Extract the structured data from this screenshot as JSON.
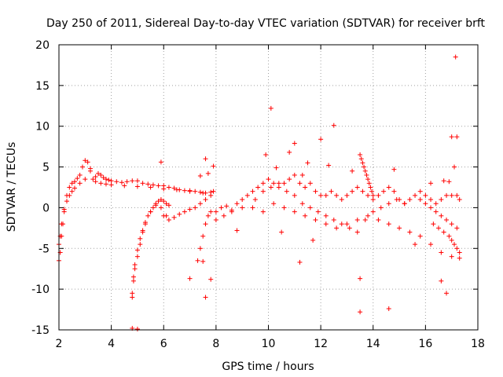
{
  "chart_data": {
    "type": "scatter",
    "title": "Day 250 of 2011, Sidereal Day-to-day VTEC variation (SDTVAR) for receiver brft",
    "xlabel": "GPS time / hours",
    "ylabel": "SDTVAR / TECUs",
    "xlim": [
      2,
      18
    ],
    "ylim": [
      -15,
      20
    ],
    "xticks": [
      2,
      4,
      6,
      8,
      10,
      12,
      14,
      16,
      18
    ],
    "yticks": [
      -15,
      -10,
      -5,
      0,
      5,
      10,
      15,
      20
    ],
    "xtick_labels": [
      "2",
      "4",
      "6",
      "8",
      "10",
      "12",
      "14",
      "16",
      "18"
    ],
    "ytick_labels": [
      "-15",
      "-10",
      "-5",
      "0",
      "5",
      "10",
      "15",
      "20"
    ],
    "grid": true,
    "marker": "+",
    "color": "#ff0000",
    "series": [
      {
        "name": "SDTVAR",
        "x": [
          2.0,
          2.05,
          2.1,
          2.15,
          2.2,
          2.3,
          2.4,
          2.5,
          2.6,
          2.7,
          2.8,
          2.9,
          3.0,
          3.1,
          3.2,
          3.3,
          3.4,
          3.5,
          3.6,
          3.7,
          3.8,
          3.9,
          4.0,
          4.2,
          4.4,
          4.6,
          4.8,
          5.0,
          5.2,
          5.4,
          5.6,
          5.8,
          6.0,
          6.2,
          6.4,
          6.6,
          6.8,
          7.0,
          7.2,
          7.4,
          7.6,
          7.8,
          2.0,
          2.05,
          2.1,
          2.2,
          2.3,
          2.4,
          2.5,
          2.6,
          2.8,
          3.0,
          3.2,
          3.4,
          3.6,
          3.8,
          4.0,
          4.5,
          5.0,
          5.5,
          6.0,
          6.5,
          7.0,
          7.5,
          4.8,
          4.85,
          4.9,
          5.0,
          5.1,
          5.2,
          5.3,
          5.4,
          5.5,
          5.6,
          5.7,
          5.8,
          5.9,
          6.0,
          6.1,
          6.2,
          4.8,
          4.85,
          4.9,
          5.0,
          5.1,
          5.2,
          5.3,
          5.5,
          5.7,
          5.9,
          6.1,
          6.0,
          6.2,
          6.4,
          6.6,
          6.8,
          7.0,
          7.2,
          7.4,
          7.6,
          7.8,
          7.9,
          7.3,
          7.4,
          7.5,
          7.6,
          7.7,
          7.8,
          8.0,
          8.2,
          8.4,
          8.6,
          8.8,
          9.0,
          9.2,
          9.4,
          9.6,
          9.8,
          10.0,
          10.2,
          10.4,
          10.6,
          10.8,
          11.0,
          11.2,
          11.4,
          11.6,
          11.8,
          12.0,
          12.2,
          12.4,
          12.6,
          12.8,
          13.0,
          13.2,
          13.4,
          13.6,
          13.8,
          14.0,
          14.2,
          14.4,
          14.6,
          14.8,
          15.0,
          15.2,
          15.4,
          15.6,
          15.8,
          16.0,
          16.2,
          16.4,
          16.6,
          16.8,
          17.0,
          17.2,
          17.3,
          8.0,
          8.3,
          8.6,
          9.0,
          9.4,
          9.8,
          10.2,
          10.6,
          11.0,
          11.4,
          11.8,
          12.2,
          12.6,
          13.0,
          13.4,
          13.8,
          14.2,
          14.6,
          15.0,
          15.4,
          15.8,
          16.2,
          16.6,
          17.0,
          17.3,
          9.5,
          9.8,
          10.1,
          10.4,
          10.7,
          11.0,
          11.3,
          11.6,
          11.9,
          12.2,
          12.5,
          12.8,
          13.1,
          13.4,
          13.7,
          14.0,
          14.3,
          14.6,
          14.9,
          15.2,
          13.5,
          13.55,
          13.6,
          13.65,
          13.7,
          13.75,
          13.8,
          13.85,
          13.9,
          13.95,
          14.0,
          16.3,
          16.5,
          16.7,
          16.9,
          17.0,
          17.1,
          17.2,
          17.3,
          15.8,
          16.0,
          16.2,
          16.4,
          16.6,
          16.8,
          17.0,
          17.2,
          10.1,
          12.5,
          17.15,
          17.0,
          17.2,
          11.0,
          10.8,
          11.3,
          12.0,
          11.2,
          11.5,
          13.5,
          14.6,
          13.5,
          16.6,
          16.8,
          5.9,
          7.6,
          7.6,
          7.5,
          4.8,
          5.0,
          7.0,
          7.8,
          10.5,
          11.7,
          13.2,
          14.8,
          15.6,
          16.9,
          17.1,
          8.8,
          12.3,
          16.2,
          16.7,
          7.7,
          7.9,
          7.4,
          9.9,
          10.3
        ],
        "y": [
          -6.5,
          -5.5,
          -3.5,
          -2.0,
          -0.5,
          1.5,
          2.5,
          3.0,
          3.2,
          3.6,
          4.0,
          5.0,
          5.8,
          5.6,
          4.5,
          3.5,
          3.8,
          4.2,
          4.0,
          3.7,
          3.5,
          3.4,
          3.3,
          3.2,
          3.1,
          3.2,
          3.3,
          3.3,
          3.0,
          2.9,
          2.8,
          2.7,
          2.7,
          2.5,
          2.4,
          2.2,
          2.1,
          2.0,
          2.0,
          1.9,
          1.8,
          1.9,
          -4.5,
          -3.5,
          -2.0,
          -0.2,
          0.8,
          1.5,
          2.0,
          2.4,
          3.0,
          3.5,
          4.8,
          3.2,
          3.0,
          2.9,
          2.8,
          2.7,
          2.6,
          2.5,
          2.3,
          2.2,
          2.1,
          1.8,
          -11.0,
          -9.0,
          -7.5,
          -6.0,
          -4.5,
          -3.0,
          -2.0,
          -1.0,
          -0.5,
          0.0,
          0.5,
          0.8,
          1.0,
          0.8,
          0.5,
          0.3,
          -10.5,
          -8.5,
          -7.0,
          -5.2,
          -3.8,
          -2.8,
          -1.8,
          -0.5,
          0.3,
          0.0,
          -1.0,
          -1.0,
          -1.5,
          -1.2,
          -0.8,
          -0.5,
          -0.2,
          0.0,
          0.5,
          1.0,
          1.5,
          2.0,
          -6.5,
          -5.0,
          -3.5,
          -2.0,
          -1.0,
          -0.5,
          -0.5,
          0.0,
          0.2,
          -0.3,
          0.5,
          1.0,
          1.5,
          2.0,
          2.5,
          3.0,
          3.5,
          3.0,
          2.5,
          3.0,
          3.5,
          4.0,
          3.0,
          2.5,
          3.0,
          2.0,
          1.5,
          1.5,
          2.0,
          1.5,
          1.0,
          1.5,
          2.0,
          2.5,
          2.0,
          1.5,
          1.0,
          1.5,
          2.0,
          2.5,
          2.0,
          1.0,
          0.5,
          1.0,
          1.5,
          2.0,
          1.5,
          1.0,
          0.5,
          1.0,
          1.5,
          1.5,
          1.5,
          1.0,
          -1.5,
          -1.0,
          -0.5,
          0.0,
          0.0,
          -0.5,
          0.5,
          0.0,
          -0.5,
          -1.0,
          -1.5,
          -2.0,
          -2.5,
          -2.0,
          -1.5,
          -1.0,
          -1.5,
          -2.0,
          -2.5,
          -3.0,
          -3.5,
          -4.5,
          -5.5,
          -6.0,
          -6.2,
          1.0,
          2.0,
          2.5,
          3.0,
          2.0,
          1.5,
          0.5,
          0.0,
          -0.5,
          -1.0,
          -1.5,
          -2.0,
          -2.5,
          -3.0,
          -1.5,
          -0.5,
          0.0,
          0.5,
          1.0,
          0.5,
          6.5,
          6.0,
          5.5,
          5.0,
          4.5,
          4.0,
          3.5,
          3.0,
          2.5,
          2.0,
          1.5,
          -2.0,
          -2.5,
          -3.0,
          -3.5,
          -4.0,
          -4.5,
          -5.0,
          -5.5,
          1.0,
          0.5,
          0.0,
          -0.5,
          -1.0,
          -1.5,
          -2.0,
          -2.5,
          12.2,
          10.1,
          18.5,
          8.7,
          8.7,
          7.9,
          6.8,
          4.0,
          8.4,
          -6.7,
          5.5,
          -12.8,
          -12.4,
          -8.7,
          -9.0,
          -10.5,
          5.6,
          6.0,
          -11.0,
          -6.6,
          -14.8,
          -14.9,
          -8.7,
          -8.8,
          -3.0,
          -4.0,
          4.5,
          4.7,
          -4.5,
          3.2,
          5.0,
          -2.8,
          5.2,
          3.0,
          3.3,
          4.2,
          5.1,
          3.9,
          6.5,
          4.9
        ]
      }
    ]
  }
}
